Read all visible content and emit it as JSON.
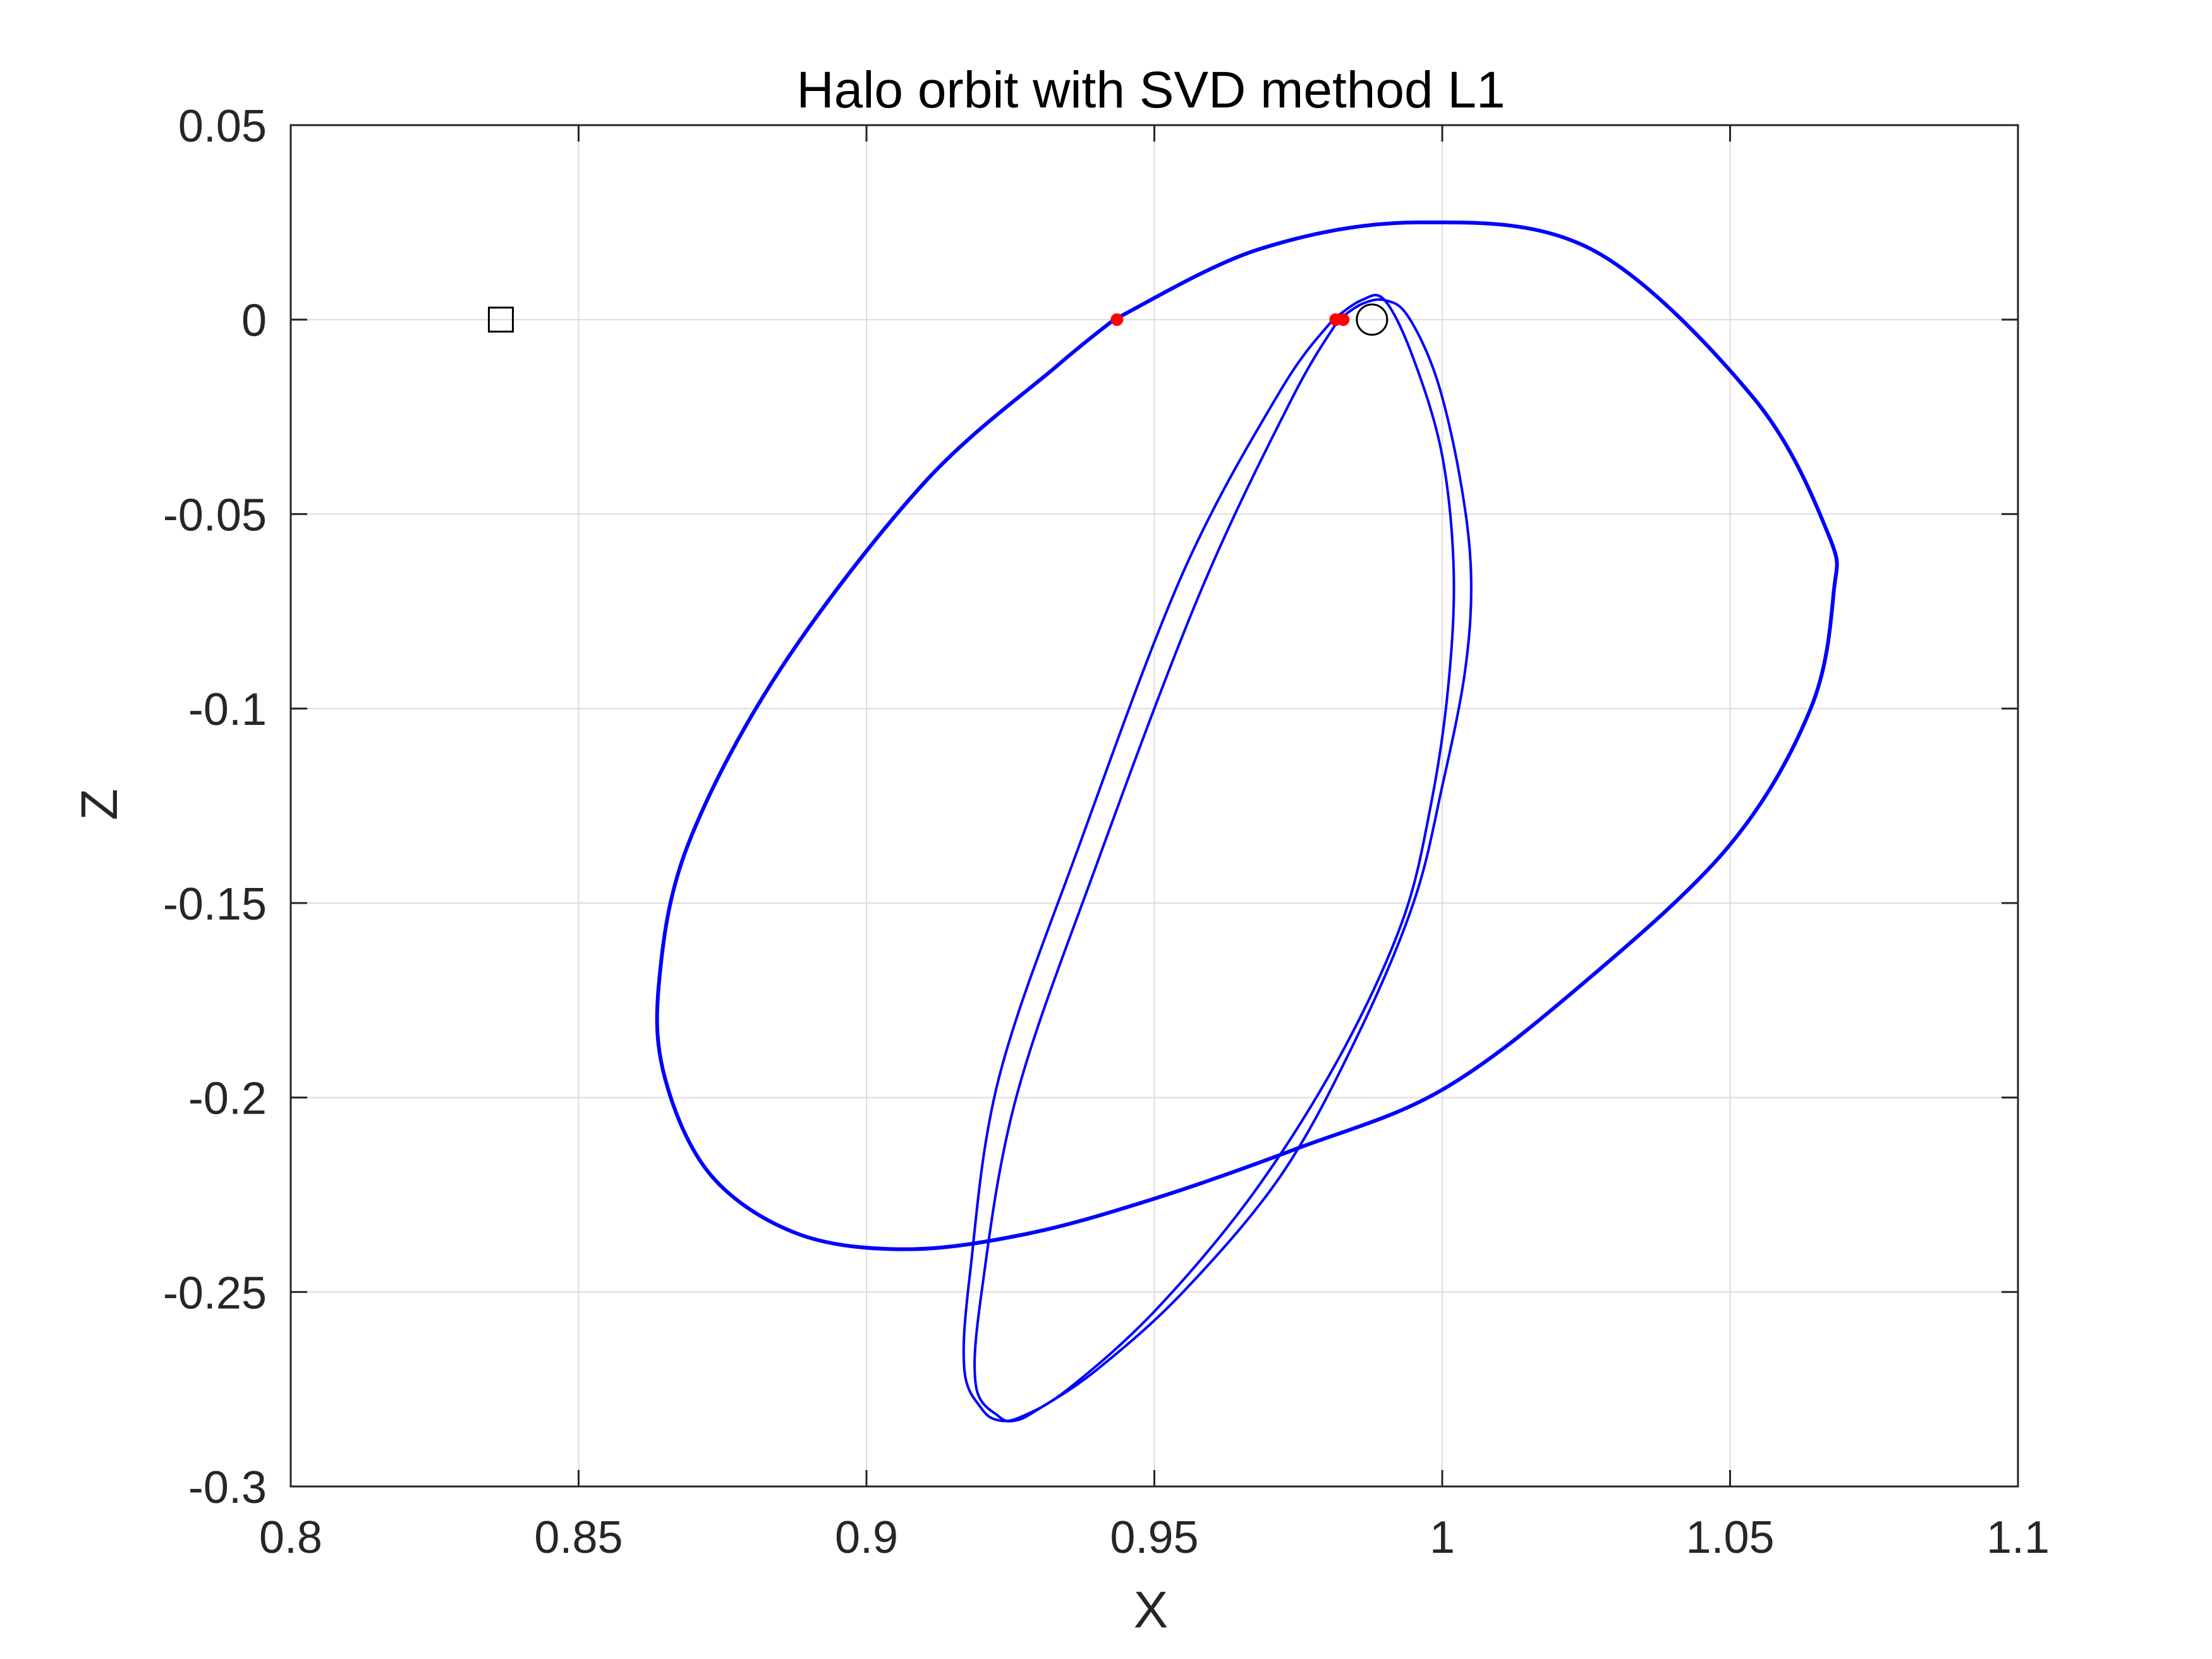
{
  "chart_data": {
    "type": "line",
    "title": "Halo orbit with SVD method L1",
    "xlabel": "X",
    "ylabel": "Z",
    "xlim": [
      0.8,
      1.1
    ],
    "ylim": [
      -0.3,
      0.05
    ],
    "xticks": [
      0.8,
      0.85,
      0.9,
      0.95,
      1,
      1.05,
      1.1
    ],
    "xtick_labels": [
      "0.8",
      "0.85",
      "0.9",
      "0.95",
      "1",
      "1.05",
      "1.1"
    ],
    "yticks": [
      -0.3,
      -0.25,
      -0.2,
      -0.15,
      -0.1,
      -0.05,
      0,
      0.05
    ],
    "ytick_labels": [
      "-0.3",
      "-0.25",
      "-0.2",
      "-0.15",
      "-0.1",
      "-0.05",
      "0",
      "0.05"
    ],
    "grid": true,
    "colors": {
      "orbit": "#0000ff",
      "crossings": "#ff0000",
      "markers": "#000000",
      "grid": "#dcdcdc"
    },
    "series": [
      {
        "style": "line",
        "x": [
          0.943,
          0.968,
          0.996,
          1.026,
          1.054,
          1.067,
          1.068,
          1.064,
          1.05,
          1.025,
          1.0,
          0.975,
          0.95,
          0.928,
          0.907,
          0.888,
          0.873,
          0.865,
          0.864,
          0.869,
          0.885,
          0.91,
          0.933,
          0.943
        ],
        "y": [
          0.0,
          0.018,
          0.025,
          0.018,
          -0.02,
          -0.055,
          -0.07,
          -0.1,
          -0.135,
          -0.17,
          -0.198,
          -0.213,
          -0.226,
          -0.235,
          -0.239,
          -0.235,
          -0.22,
          -0.195,
          -0.17,
          -0.135,
          -0.09,
          -0.042,
          -0.012,
          0.0
        ]
      },
      {
        "style": "line",
        "x": [
          0.982,
          0.986,
          0.99,
          0.994,
          0.999,
          1.003,
          1.005,
          1.004,
          1.0,
          0.995,
          0.985,
          0.972,
          0.955,
          0.94,
          0.93,
          0.926,
          0.923,
          0.919,
          0.92,
          0.926,
          0.94,
          0.958,
          0.974,
          0.982
        ],
        "y": [
          0.0,
          0.004,
          0.005,
          0.001,
          -0.015,
          -0.04,
          -0.065,
          -0.09,
          -0.12,
          -0.15,
          -0.185,
          -0.22,
          -0.25,
          -0.27,
          -0.28,
          -0.283,
          -0.282,
          -0.274,
          -0.25,
          -0.2,
          -0.14,
          -0.07,
          -0.02,
          0.0
        ]
      },
      {
        "style": "line",
        "x": [
          0.981,
          0.986,
          0.99,
          0.995,
          1.0,
          1.002,
          1.001,
          0.998,
          0.993,
          0.982,
          0.967,
          0.95,
          0.935,
          0.927,
          0.923,
          0.92,
          0.917,
          0.918,
          0.923,
          0.937,
          0.955,
          0.972,
          0.981
        ],
        "y": [
          0.0,
          0.005,
          0.005,
          -0.01,
          -0.035,
          -0.065,
          -0.095,
          -0.125,
          -0.155,
          -0.19,
          -0.225,
          -0.255,
          -0.275,
          -0.282,
          -0.283,
          -0.28,
          -0.27,
          -0.245,
          -0.195,
          -0.135,
          -0.065,
          -0.018,
          0.0
        ]
      },
      {
        "style": "points",
        "x": [
          0.9435,
          0.9815,
          0.9828
        ],
        "y": [
          0.0,
          0.0,
          0.0
        ]
      }
    ],
    "markers": [
      {
        "shape": "square",
        "x": 0.8365,
        "y": 0.0
      },
      {
        "shape": "circle",
        "x": 0.9878,
        "y": 0.0
      }
    ]
  }
}
